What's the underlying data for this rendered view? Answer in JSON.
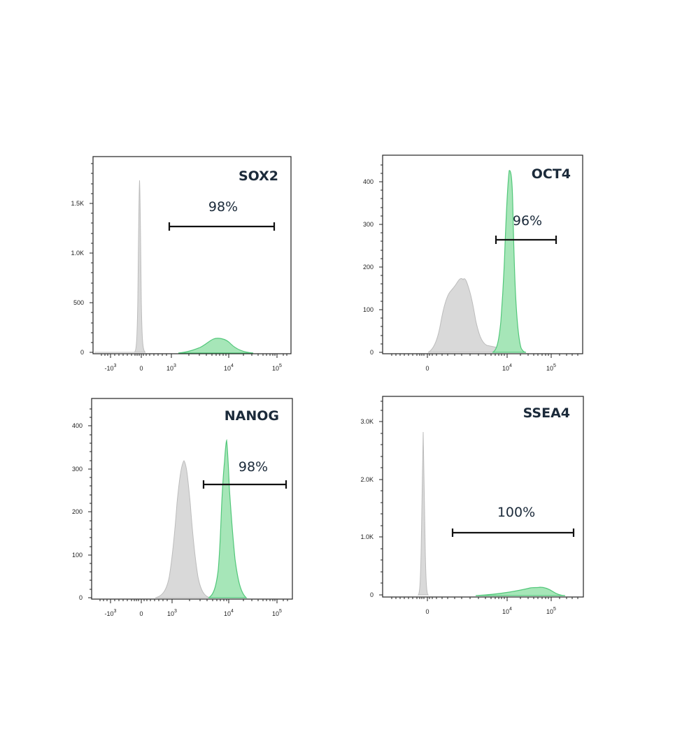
{
  "colors": {
    "control": "#d9d9d9",
    "control_stroke": "#bcbcbc",
    "stained": "#a6e6b8",
    "stained_stroke": "#52c77a",
    "text": "#1b2a3a"
  },
  "chart_data": [
    {
      "type": "area",
      "title": "SOX2",
      "yticks": [
        "0",
        "500",
        "1.0K",
        "1.5K"
      ],
      "ylim": [
        0,
        1900
      ],
      "xscale": "biexponential",
      "xticks": [
        "-10^3",
        "0",
        "10^3",
        "10^4",
        "10^5"
      ],
      "series": [
        {
          "role": "control",
          "peak_x": 0,
          "peak_y": 1730
        },
        {
          "role": "stained",
          "peak_x": 6000,
          "peak_y": 150
        }
      ],
      "gate": {
        "label": "98%",
        "from": 900,
        "to": 110000
      }
    },
    {
      "type": "area",
      "title": "OCT4",
      "yticks": [
        "0",
        "100",
        "200",
        "300",
        "400"
      ],
      "ylim": [
        0,
        460
      ],
      "xscale": "biexponential",
      "xticks": [
        "0",
        "10^4",
        "10^5"
      ],
      "series": [
        {
          "role": "control",
          "peak_x": 1800,
          "peak_y": 175
        },
        {
          "role": "stained",
          "peak_x": 13000,
          "peak_y": 425
        }
      ],
      "gate": {
        "label": "96%",
        "from": 7000,
        "to": 150000
      }
    },
    {
      "type": "area",
      "title": "NANOG",
      "yticks": [
        "0",
        "100",
        "200",
        "300",
        "400"
      ],
      "ylim": [
        0,
        460
      ],
      "xscale": "biexponential",
      "xticks": [
        "-10^3",
        "0",
        "10^3",
        "10^4",
        "10^5"
      ],
      "series": [
        {
          "role": "control",
          "peak_x": 1900,
          "peak_y": 318
        },
        {
          "role": "stained",
          "peak_x": 9500,
          "peak_y": 365
        }
      ],
      "gate": {
        "label": "98%",
        "from": 4000,
        "to": 150000
      }
    },
    {
      "type": "area",
      "title": "SSEA4",
      "yticks": [
        "0",
        "1.0K",
        "2.0K",
        "3.0K"
      ],
      "ylim": [
        0,
        3450
      ],
      "xscale": "biexponential",
      "xticks": [
        "0",
        "10^4",
        "10^5"
      ],
      "series": [
        {
          "role": "control",
          "peak_x": 0,
          "peak_y": 2820
        },
        {
          "role": "stained",
          "peak_x": 50000,
          "peak_y": 120
        }
      ],
      "gate": {
        "label": "100%",
        "from": 1500,
        "to": 300000
      }
    }
  ]
}
